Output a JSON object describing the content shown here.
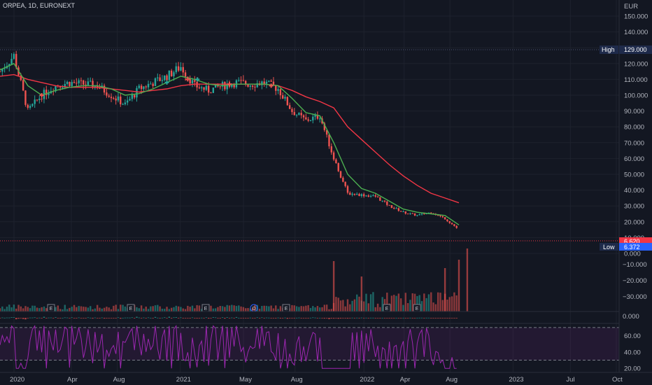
{
  "header": {
    "symbol_line": "ORPEA, 1D, EURONEXT",
    "currency": "EUR"
  },
  "colors": {
    "background": "#131722",
    "grid": "#1e222d",
    "up": "#26a69a",
    "down": "#ef5350",
    "sma_fast": "#4caf50",
    "sma_slow": "#f23645",
    "rsi": "#9c27b0",
    "label_blue": "#2962ff",
    "label_red": "#f23645"
  },
  "price_panel": {
    "ticks": [
      "150.000",
      "140.000",
      "130.000",
      "120.000",
      "110.000",
      "100.000",
      "90.000",
      "80.000",
      "70.000",
      "60.000",
      "50.000",
      "40.000",
      "30.000",
      "20.000",
      "10.000",
      "0.000"
    ],
    "high_label": "High",
    "high_value": "129.000",
    "low_label": "Low",
    "low_value": "6.372",
    "last_value": "6.620"
  },
  "oscillator_panel": {
    "ticks": [
      "−10.000",
      "−20.000",
      "−30.000",
      "0.000"
    ]
  },
  "rsi_panel": {
    "ticks": [
      "60.00",
      "40.00",
      "20.00"
    ]
  },
  "time_axis": {
    "labels": [
      "2020",
      "Apr",
      "Aug",
      "2021",
      "May",
      "Aug",
      "2022",
      "Apr",
      "Aug",
      "2023",
      "Jul",
      "Oct"
    ]
  },
  "events": [
    "E",
    "E",
    "E",
    "D",
    "E",
    "E",
    "E"
  ],
  "chart_data": {
    "type": "candlestick",
    "symbol": "ORPEA",
    "interval": "1D",
    "exchange": "EURONEXT",
    "currency": "EUR",
    "price_range": [
      0,
      155
    ],
    "series": [
      {
        "name": "close",
        "x": [
          "2020-01",
          "2020-02",
          "2020-03",
          "2020-04",
          "2020-05",
          "2020-06",
          "2020-07",
          "2020-08",
          "2020-09",
          "2020-10",
          "2020-11",
          "2020-12",
          "2021-01",
          "2021-02",
          "2021-03",
          "2021-04",
          "2021-05",
          "2021-06",
          "2021-07",
          "2021-08",
          "2021-09",
          "2021-10",
          "2021-11",
          "2021-12",
          "2022-01",
          "2022-02",
          "2022-03",
          "2022-04",
          "2022-05",
          "2022-06",
          "2022-07",
          "2022-08",
          "2022-09",
          "2022-10"
        ],
        "values": [
          115,
          125,
          90,
          100,
          106,
          108,
          107,
          106,
          100,
          94,
          104,
          108,
          112,
          118,
          106,
          103,
          106,
          108,
          107,
          108,
          104,
          90,
          84,
          87,
          60,
          38,
          37,
          36,
          30,
          26,
          24,
          26,
          22,
          15
        ]
      },
      {
        "name": "sma_fast",
        "values": [
          116,
          120,
          106,
          100,
          103,
          105,
          106,
          106,
          104,
          100,
          101,
          104,
          108,
          112,
          110,
          107,
          106,
          107,
          107,
          107,
          106,
          98,
          89,
          87,
          70,
          50,
          41,
          38,
          33,
          28,
          26,
          25,
          24,
          18
        ]
      },
      {
        "name": "sma_slow",
        "values": [
          112,
          113,
          110,
          108,
          106,
          105,
          105,
          105,
          104,
          103,
          102,
          103,
          104,
          106,
          107,
          107,
          107,
          107,
          107,
          107,
          106,
          103,
          99,
          96,
          92,
          80,
          72,
          64,
          56,
          49,
          43,
          38,
          35,
          32
        ]
      }
    ],
    "annotations": {
      "high": 129.0,
      "low": 6.372,
      "last": 6.62
    },
    "rsi": {
      "levels": [
        70,
        30
      ],
      "range": [
        15,
        75
      ]
    },
    "events": [
      "E",
      "E",
      "E",
      "D",
      "E",
      "E",
      "E"
    ],
    "grid": true
  }
}
